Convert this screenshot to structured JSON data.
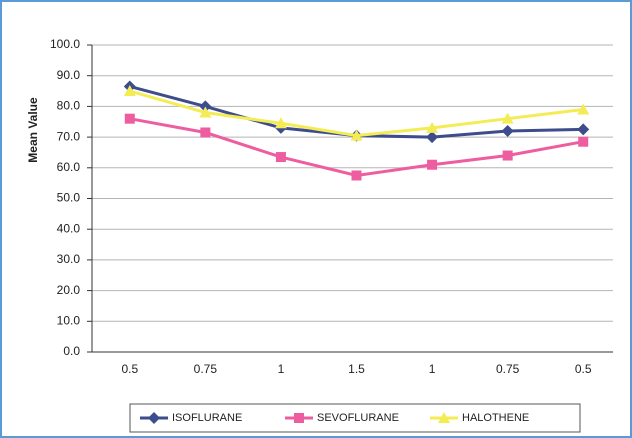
{
  "chart_data": {
    "type": "line",
    "ylabel": "Mean Value",
    "categories": [
      "0.5",
      "0.75",
      "1",
      "1.5",
      "1",
      "0.75",
      "0.5"
    ],
    "series": [
      {
        "name": "ISOFLURANE",
        "color": "#3d4c8c",
        "marker": "diamond",
        "values": [
          86.5,
          80,
          73,
          70.5,
          70,
          72,
          72.5
        ]
      },
      {
        "name": "SEVOFLURANE",
        "color": "#ee5d9f",
        "marker": "square",
        "values": [
          76,
          71.5,
          63.5,
          57.5,
          61,
          64,
          68.5
        ]
      },
      {
        "name": "HALOTHENE",
        "color": "#f3ec55",
        "marker": "triangle",
        "values": [
          85,
          78,
          74.5,
          70.5,
          73,
          76,
          79
        ]
      }
    ],
    "ylim": [
      0,
      100
    ],
    "yticks": [
      {
        "value": 0,
        "label": "0.0"
      },
      {
        "value": 10,
        "label": "10.0"
      },
      {
        "value": 20,
        "label": "20.0"
      },
      {
        "value": 30,
        "label": "30.0"
      },
      {
        "value": 40,
        "label": "40.0"
      },
      {
        "value": 50,
        "label": "50.0"
      },
      {
        "value": 60,
        "label": "60.0"
      },
      {
        "value": 70,
        "label": "70.0"
      },
      {
        "value": 80,
        "label": "80.0"
      },
      {
        "value": 90,
        "label": "90.0"
      },
      {
        "value": 100,
        "label": "100.0"
      }
    ],
    "grid": true,
    "legend": "bottom"
  }
}
